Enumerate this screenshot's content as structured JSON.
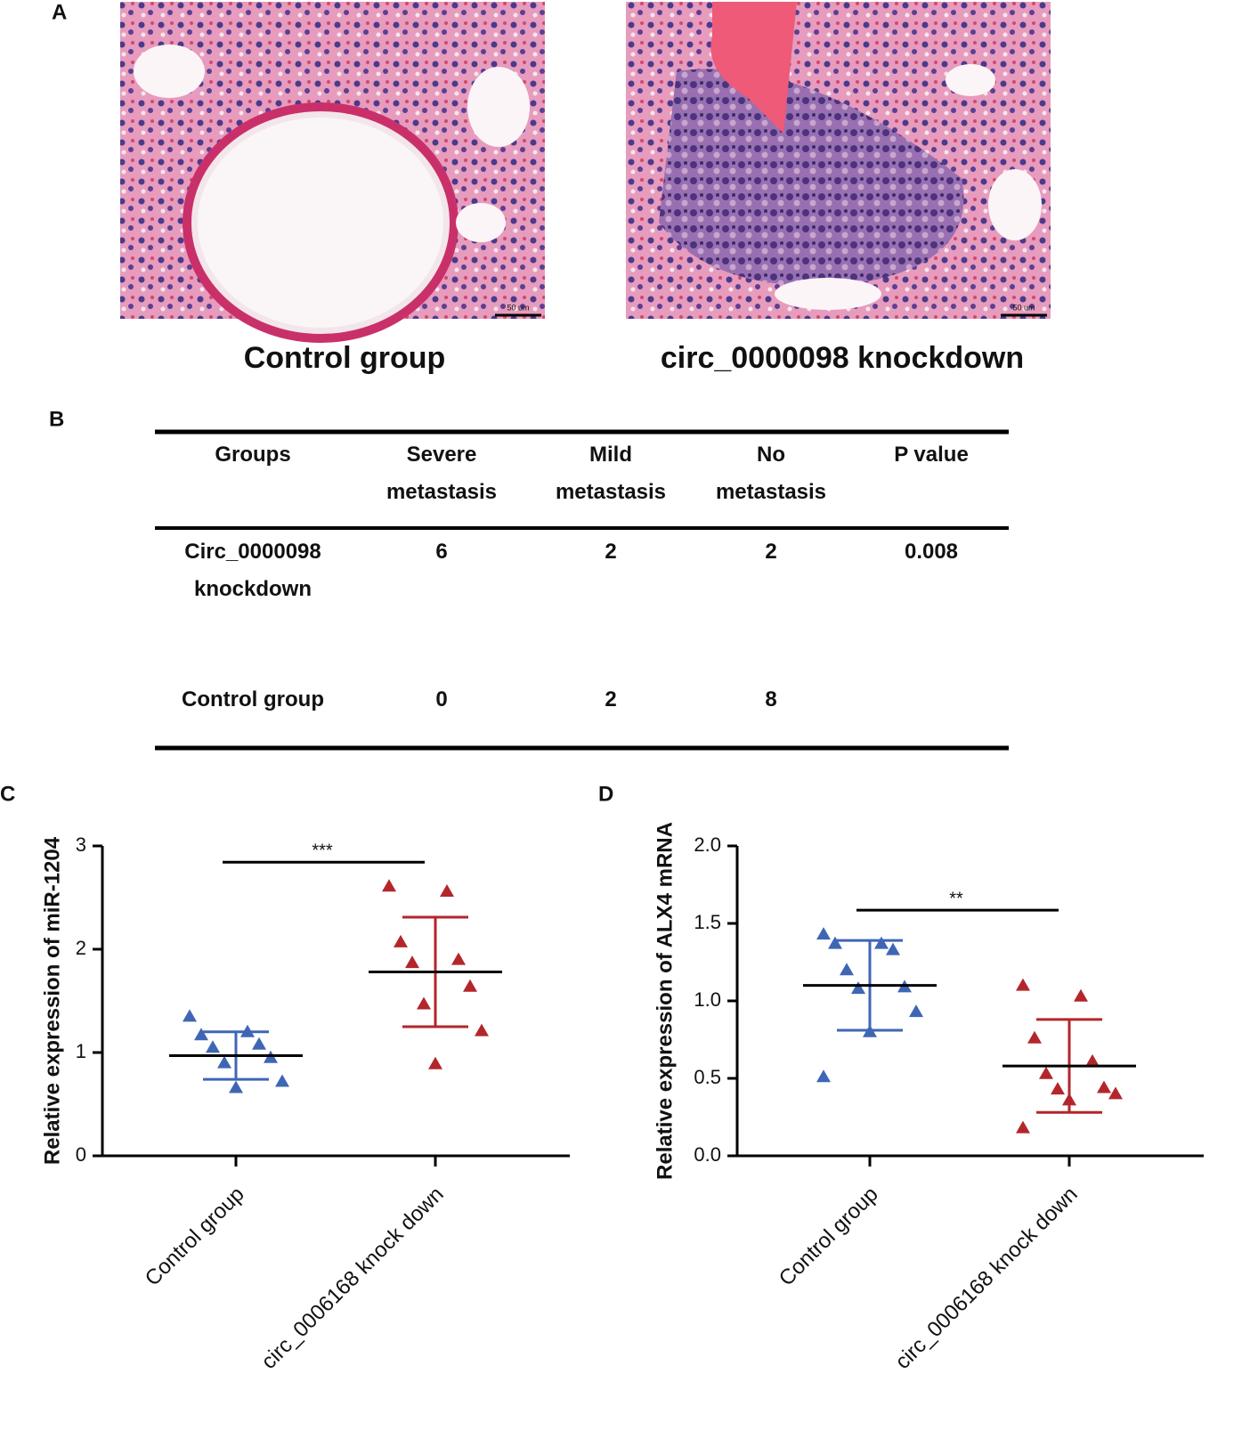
{
  "panel_labels": [
    "A",
    "B",
    "C",
    "D"
  ],
  "images": [
    {
      "caption": "Control group",
      "scale_bar": "50 um"
    },
    {
      "caption": "circ_0000098 knockdown",
      "scale_bar": "50 um"
    }
  ],
  "table": {
    "header": [
      "Groups",
      "Severe metastasis",
      "Mild metastasis",
      "No metastasis",
      "P value"
    ],
    "rows": [
      [
        "Circ_0000098 knockdown",
        6,
        2,
        2,
        0.008
      ],
      [
        "Control group",
        0,
        2,
        8
      ]
    ]
  },
  "chart_data": [
    {
      "type": "scatter",
      "ylabel": "Relative expression of miR-1204",
      "categories": [
        "Control group",
        "circ_0006168 knock down"
      ],
      "series": [
        {
          "name": "Control group",
          "color": "#3f66b5",
          "values": [
            1.35,
            1.2,
            1.17,
            1.08,
            1.05,
            0.95,
            0.9,
            0.72,
            0.66
          ],
          "mean": 0.97,
          "sd": 0.23
        },
        {
          "name": "circ_0006168 knock down",
          "color": "#b3262b",
          "values": [
            2.61,
            2.56,
            2.07,
            1.9,
            1.87,
            1.64,
            1.47,
            1.21,
            0.89
          ],
          "mean": 1.78,
          "sd": 0.53
        }
      ],
      "annotation": "***",
      "ylim": [
        0,
        3
      ],
      "yticks": [
        0,
        1,
        2,
        3
      ]
    },
    {
      "type": "scatter",
      "ylabel": "Relative expression of ALX4 mRNA",
      "categories": [
        "Control group",
        "circ_0006168 knock down"
      ],
      "series": [
        {
          "name": "Control group",
          "color": "#3f66b5",
          "values": [
            1.43,
            1.37,
            1.37,
            1.33,
            1.2,
            1.09,
            1.08,
            0.93,
            0.8,
            0.51
          ],
          "mean": 1.1,
          "sd": 0.29
        },
        {
          "name": "circ_0006168 knock down",
          "color": "#b3262b",
          "values": [
            1.1,
            1.03,
            0.76,
            0.61,
            0.53,
            0.44,
            0.43,
            0.4,
            0.36,
            0.18
          ],
          "mean": 0.58,
          "sd": 0.3
        }
      ],
      "annotation": "**",
      "ylim": [
        0,
        2
      ],
      "yticks": [
        {
          "value": 0,
          "label": "0.0"
        },
        0.5,
        {
          "value": 1,
          "label": "1.0"
        },
        1.5,
        {
          "value": 2,
          "label": "2.0"
        }
      ]
    }
  ]
}
